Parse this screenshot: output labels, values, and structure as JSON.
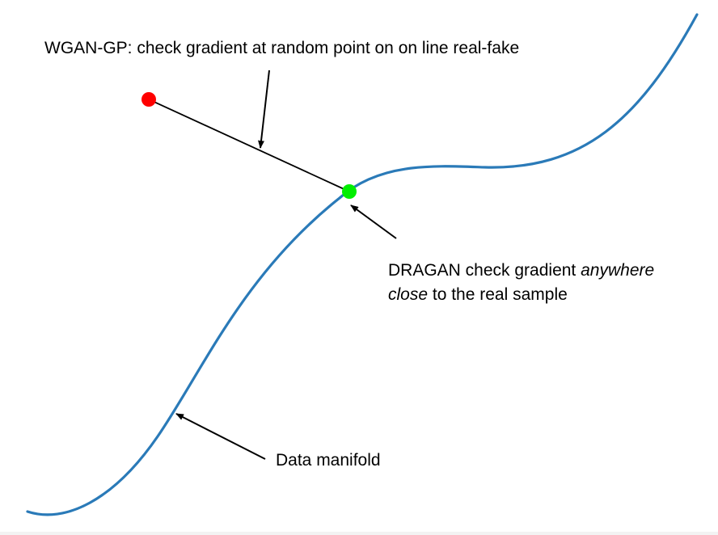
{
  "labels": {
    "wgan_gp": "WGAN-GP: check gradient at random point on on line real-fake",
    "dragan_line1_prefix": "DRAGAN check gradient ",
    "dragan_line1_italic": "anywhere",
    "dragan_line2_italic": "close",
    "dragan_line2_suffix": " to the real sample",
    "data_manifold": "Data manifold"
  },
  "colors": {
    "manifold_curve": "#2a7ab8",
    "fake_point": "#ff0000",
    "real_point": "#00ee00",
    "line": "#000000",
    "arrows": "#000000"
  }
}
